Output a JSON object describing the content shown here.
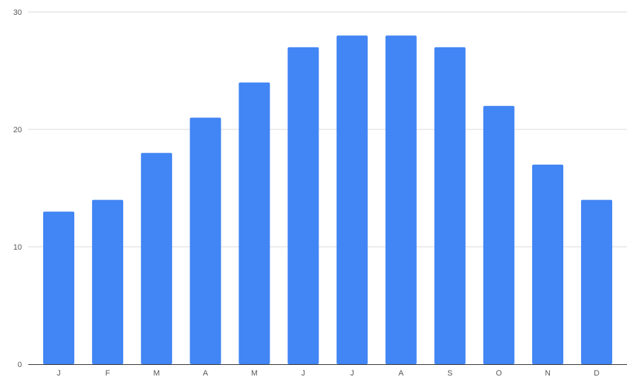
{
  "chart_data": {
    "type": "bar",
    "title": "",
    "xlabel": "",
    "ylabel": "",
    "categories": [
      "J",
      "F",
      "M",
      "A",
      "M",
      "J",
      "J",
      "A",
      "S",
      "O",
      "N",
      "D"
    ],
    "series": [
      {
        "values": [
          13,
          14,
          18,
          21,
          24,
          27,
          28,
          28,
          27,
          22,
          17,
          14
        ],
        "color": "#4285f4"
      }
    ],
    "ylim": [
      0,
      30
    ],
    "yticks": [
      "0",
      "10",
      "20",
      "30"
    ],
    "grid": true,
    "legend": "none"
  }
}
